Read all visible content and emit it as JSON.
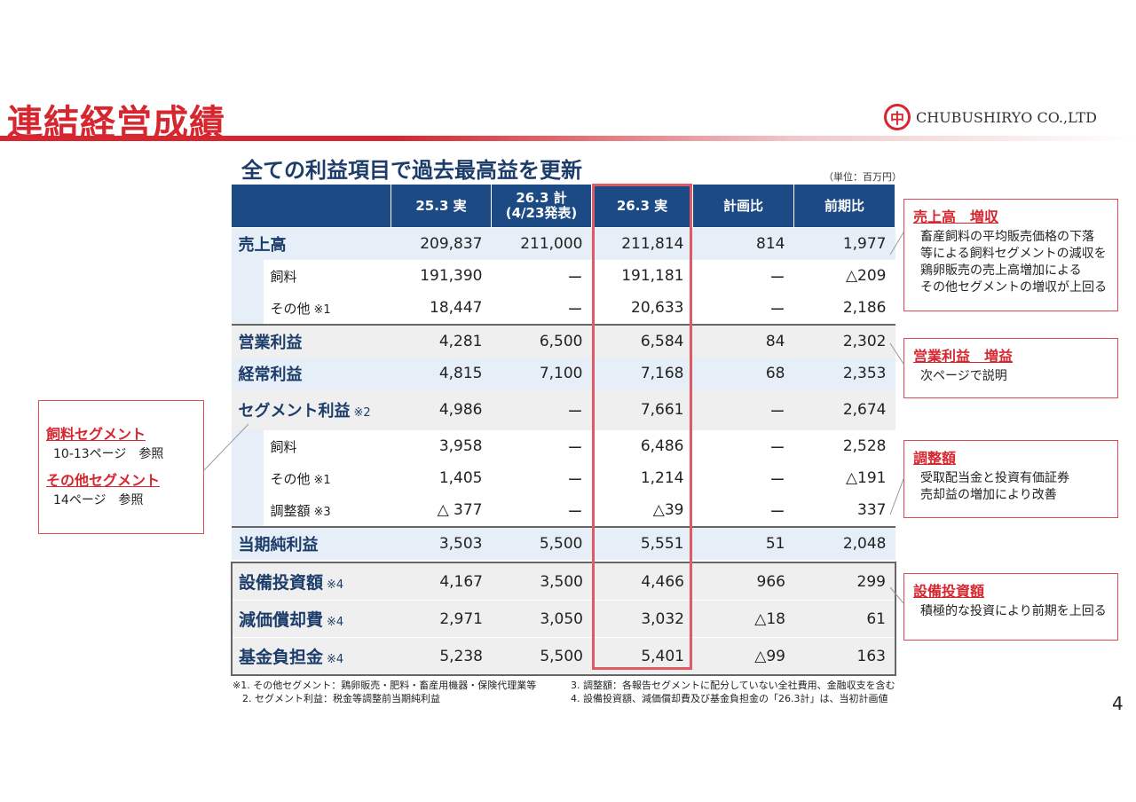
{
  "title": "連結経営成績",
  "company": {
    "logo_char": "中",
    "name": "CHUBUSHIRYO CO.,LTD"
  },
  "subtitle": "全ての利益項目で過去最高益を更新",
  "unit": "（単位：百万円）",
  "columns": [
    "",
    "25.3 実",
    "26.3 計\n(4/23発表)",
    "26.3 実",
    "計画比",
    "前期比"
  ],
  "rows": [
    {
      "label": "売上高",
      "values": [
        "209,837",
        "211,000",
        "211,814",
        "814",
        "1,977"
      ]
    },
    {
      "label": "飼料",
      "values": [
        "191,390",
        "ー",
        "191,181",
        "ー",
        "△209"
      ]
    },
    {
      "label": "その他",
      "mark": "※1",
      "values": [
        "18,447",
        "ー",
        "20,633",
        "ー",
        "2,186"
      ]
    },
    {
      "label": "営業利益",
      "values": [
        "4,281",
        "6,500",
        "6,584",
        "84",
        "2,302"
      ]
    },
    {
      "label": "経常利益",
      "values": [
        "4,815",
        "7,100",
        "7,168",
        "68",
        "2,353"
      ]
    },
    {
      "label": "セグメント利益",
      "mark": "※2",
      "values": [
        "4,986",
        "ー",
        "7,661",
        "ー",
        "2,674"
      ]
    },
    {
      "label": "飼料",
      "values": [
        "3,958",
        "ー",
        "6,486",
        "ー",
        "2,528"
      ]
    },
    {
      "label": "その他",
      "mark": "※1",
      "values": [
        "1,405",
        "ー",
        "1,214",
        "ー",
        "△191"
      ]
    },
    {
      "label": "調整額",
      "mark": "※3",
      "values": [
        "△ 377",
        "ー",
        "△39",
        "ー",
        "337"
      ]
    },
    {
      "label": "当期純利益",
      "values": [
        "3,503",
        "5,500",
        "5,551",
        "51",
        "2,048"
      ]
    },
    {
      "label": "設備投資額",
      "mark": "※4",
      "values": [
        "4,167",
        "3,500",
        "4,466",
        "966",
        "299"
      ]
    },
    {
      "label": "減価償却費",
      "mark": "※4",
      "values": [
        "2,971",
        "3,050",
        "3,032",
        "△18",
        "61"
      ]
    },
    {
      "label": "基金負担金",
      "mark": "※4",
      "values": [
        "5,238",
        "5,500",
        "5,401",
        "△99",
        "163"
      ]
    }
  ],
  "callouts": {
    "sales": {
      "head": "売上高　増収",
      "lines": [
        "畜産飼料の平均販売価格の下落",
        "等による飼料セグメントの減収を",
        "鶏卵販売の売上高増加による",
        "その他セグメントの増収が上回る"
      ]
    },
    "op": {
      "head": "営業利益　増益",
      "lines": [
        "次ページで説明"
      ]
    },
    "adj": {
      "head": "調整額",
      "lines": [
        "受取配当金と投資有価証券",
        "売却益の増加により改善"
      ]
    },
    "capex": {
      "head": "設備投資額",
      "lines": [
        "積極的な投資により前期を上回る"
      ]
    },
    "segment": {
      "head1": "飼料セグメント",
      "line1": "10-13ページ　参照",
      "head2": "その他セグメント",
      "line2": "14ページ　参照"
    }
  },
  "footnotes": {
    "left": [
      "※1. その他セグメント：鶏卵販売・肥料・畜産用機器・保険代理業等",
      "　2. セグメント利益：税金等調整前当期純利益"
    ],
    "right": [
      "3. 調整額：各報告セグメントに配分していない全社費用、金融収支を含む",
      "4. 設備投資額、減価償却費及び基金負担金の「26.3計」は、当初計画値"
    ]
  },
  "page_number": "4"
}
